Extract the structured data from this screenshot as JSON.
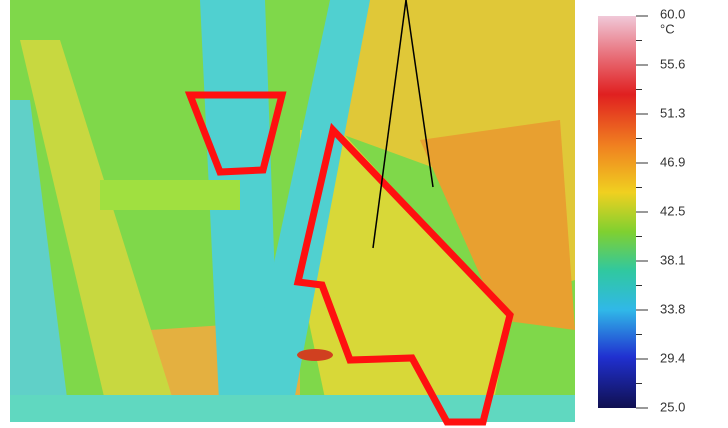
{
  "color_scale": {
    "unit": "°C",
    "labels": [
      "60.0",
      "55.6",
      "51.3",
      "46.9",
      "42.5",
      "38.1",
      "33.8",
      "29.4",
      "25.0"
    ]
  }
}
